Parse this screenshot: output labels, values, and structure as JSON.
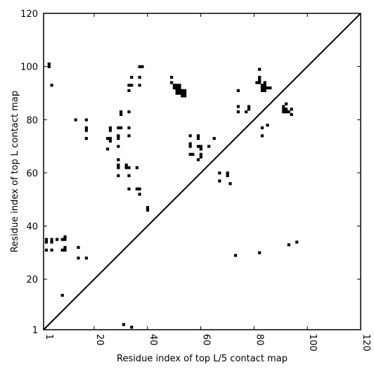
{
  "chart_data": {
    "type": "scatter",
    "title": "",
    "xlabel": "Residue index of top L/5 contact map",
    "ylabel": "Residue index of top L contact map",
    "xlim": [
      1,
      120
    ],
    "ylim": [
      1,
      120
    ],
    "x_ticks": [
      1,
      20,
      40,
      60,
      80,
      100,
      120
    ],
    "y_ticks": [
      1,
      20,
      40,
      60,
      80,
      100,
      120
    ],
    "x_tick_labels": [
      "1",
      "20",
      "40",
      "60",
      "80",
      "100",
      "120"
    ],
    "y_tick_labels": [
      "1",
      "20",
      "40",
      "60",
      "80",
      "100",
      "120"
    ],
    "grid": false,
    "diagonal_line": true,
    "marker_color": "#000000",
    "series": [
      {
        "points": [
          [
            3,
            100
          ],
          [
            3,
            101
          ],
          [
            4,
            93
          ],
          [
            2,
            34
          ],
          [
            2,
            35
          ],
          [
            2,
            31
          ],
          [
            4,
            34
          ],
          [
            4,
            35
          ],
          [
            4,
            31
          ],
          [
            6,
            35
          ],
          [
            8,
            35
          ],
          [
            8,
            31
          ],
          [
            9,
            35
          ],
          [
            9,
            36
          ],
          [
            9,
            31
          ],
          [
            9,
            32
          ],
          [
            14,
            32
          ],
          [
            14,
            28
          ],
          [
            17,
            28
          ],
          [
            8,
            14
          ],
          [
            13,
            80
          ],
          [
            17,
            80
          ],
          [
            17,
            76
          ],
          [
            17,
            77
          ],
          [
            17,
            73
          ],
          [
            25,
            73
          ],
          [
            25,
            69
          ],
          [
            26,
            72
          ],
          [
            26,
            73
          ],
          [
            26,
            76
          ],
          [
            26,
            77
          ],
          [
            29,
            77
          ],
          [
            29,
            73
          ],
          [
            29,
            74
          ],
          [
            29,
            70
          ],
          [
            29,
            65
          ],
          [
            29,
            62
          ],
          [
            29,
            63
          ],
          [
            29,
            59
          ],
          [
            30,
            82
          ],
          [
            30,
            83
          ],
          [
            30,
            77
          ],
          [
            32,
            62
          ],
          [
            32,
            63
          ],
          [
            33,
            62
          ],
          [
            33,
            59
          ],
          [
            33,
            54
          ],
          [
            33,
            93
          ],
          [
            33,
            91
          ],
          [
            34,
            93
          ],
          [
            34,
            96
          ],
          [
            33,
            83
          ],
          [
            33,
            77
          ],
          [
            33,
            74
          ],
          [
            36,
            62
          ],
          [
            36,
            54
          ],
          [
            37,
            54
          ],
          [
            37,
            52
          ],
          [
            37,
            93
          ],
          [
            37,
            96
          ],
          [
            37,
            100
          ],
          [
            38,
            100
          ],
          [
            40,
            46
          ],
          [
            40,
            47
          ],
          [
            31,
            3
          ],
          [
            34,
            2
          ],
          [
            49,
            96
          ],
          [
            49,
            94
          ],
          [
            50,
            92
          ],
          [
            50,
            93
          ],
          [
            51,
            90
          ],
          [
            51,
            91
          ],
          [
            51,
            92
          ],
          [
            51,
            93
          ],
          [
            52,
            90
          ],
          [
            52,
            91
          ],
          [
            52,
            92
          ],
          [
            52,
            93
          ],
          [
            53,
            89
          ],
          [
            53,
            90
          ],
          [
            53,
            91
          ],
          [
            54,
            89
          ],
          [
            54,
            90
          ],
          [
            54,
            91
          ],
          [
            56,
            74
          ],
          [
            56,
            71
          ],
          [
            56,
            70
          ],
          [
            56,
            67
          ],
          [
            57,
            67
          ],
          [
            59,
            74
          ],
          [
            59,
            73
          ],
          [
            59,
            70
          ],
          [
            59,
            65
          ],
          [
            60,
            70
          ],
          [
            60,
            67
          ],
          [
            60,
            66
          ],
          [
            60,
            69
          ],
          [
            63,
            70
          ],
          [
            65,
            73
          ],
          [
            67,
            60
          ],
          [
            67,
            57
          ],
          [
            70,
            59
          ],
          [
            70,
            60
          ],
          [
            71,
            56
          ],
          [
            73,
            29
          ],
          [
            74,
            91
          ],
          [
            74,
            85
          ],
          [
            74,
            83
          ],
          [
            77,
            83
          ],
          [
            78,
            84
          ],
          [
            78,
            85
          ],
          [
            81,
            94
          ],
          [
            82,
            99
          ],
          [
            82,
            96
          ],
          [
            82,
            95
          ],
          [
            82,
            94
          ],
          [
            82,
            30
          ],
          [
            83,
            77
          ],
          [
            83,
            74
          ],
          [
            83,
            93
          ],
          [
            83,
            92
          ],
          [
            83,
            91
          ],
          [
            84,
            94
          ],
          [
            84,
            93
          ],
          [
            84,
            92
          ],
          [
            84,
            91
          ],
          [
            85,
            92
          ],
          [
            85,
            78
          ],
          [
            86,
            92
          ],
          [
            91,
            85
          ],
          [
            91,
            84
          ],
          [
            91,
            83
          ],
          [
            92,
            86
          ],
          [
            92,
            84
          ],
          [
            92,
            83
          ],
          [
            93,
            83
          ],
          [
            93,
            33
          ],
          [
            94,
            84
          ],
          [
            94,
            82
          ],
          [
            96,
            34
          ]
        ]
      }
    ]
  }
}
